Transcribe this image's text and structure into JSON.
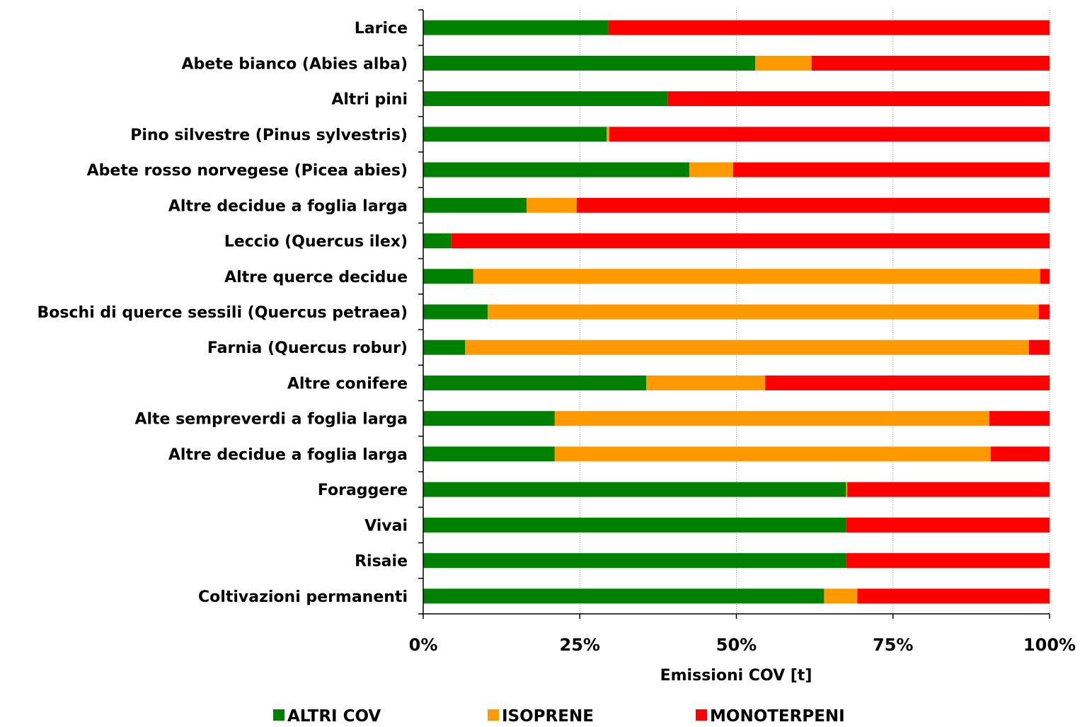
{
  "chart_data": {
    "type": "bar",
    "orientation": "horizontal",
    "stacked": "percent",
    "title": "",
    "xlabel": "Emissioni COV [t]",
    "ylabel": "",
    "xlim": [
      0,
      100
    ],
    "x_ticks": [
      "0%",
      "25%",
      "50%",
      "75%",
      "100%"
    ],
    "x_tick_values": [
      0,
      25,
      50,
      75,
      100
    ],
    "grid": "vertical dotted",
    "legend_position": "bottom",
    "categories": [
      "Larice",
      "Abete bianco (Abies alba)",
      "Altri pini",
      "Pino silvestre (Pinus sylvestris)",
      "Abete rosso norvegese (Picea abies)",
      "Altre decidue a foglia larga",
      "Leccio (Quercus ilex)",
      "Altre querce decidue",
      "Boschi di querce sessili (Quercus petraea)",
      "Farnia (Quercus robur)",
      "Altre conifere",
      "Alte sempreverdi a foglia larga",
      "Altre decidue a foglia larga",
      "Foraggere",
      "Vivai",
      "Risaie",
      "Coltivazioni permanenti"
    ],
    "series": [
      {
        "name": "ALTRI COV",
        "color": "#008000",
        "values": [
          29.5,
          53,
          39,
          29.3,
          42.5,
          16.5,
          4.5,
          8,
          10.3,
          6.7,
          35.6,
          21,
          21,
          67.5,
          67.5,
          67.5,
          64
        ]
      },
      {
        "name": "ISOPRENE",
        "color": "#FF9900",
        "values": [
          0,
          9,
          0,
          0.4,
          7,
          8,
          0,
          90.5,
          88,
          90,
          19,
          69.4,
          69.6,
          0.2,
          0,
          0,
          5.3
        ]
      },
      {
        "name": "MONOTERPENI",
        "color": "#FF0000",
        "values": [
          70.5,
          38,
          61,
          70.3,
          50.5,
          75.5,
          95.5,
          1.5,
          1.7,
          3.3,
          45.4,
          9.6,
          9.4,
          32.3,
          32.5,
          32.5,
          30.7
        ]
      }
    ]
  }
}
